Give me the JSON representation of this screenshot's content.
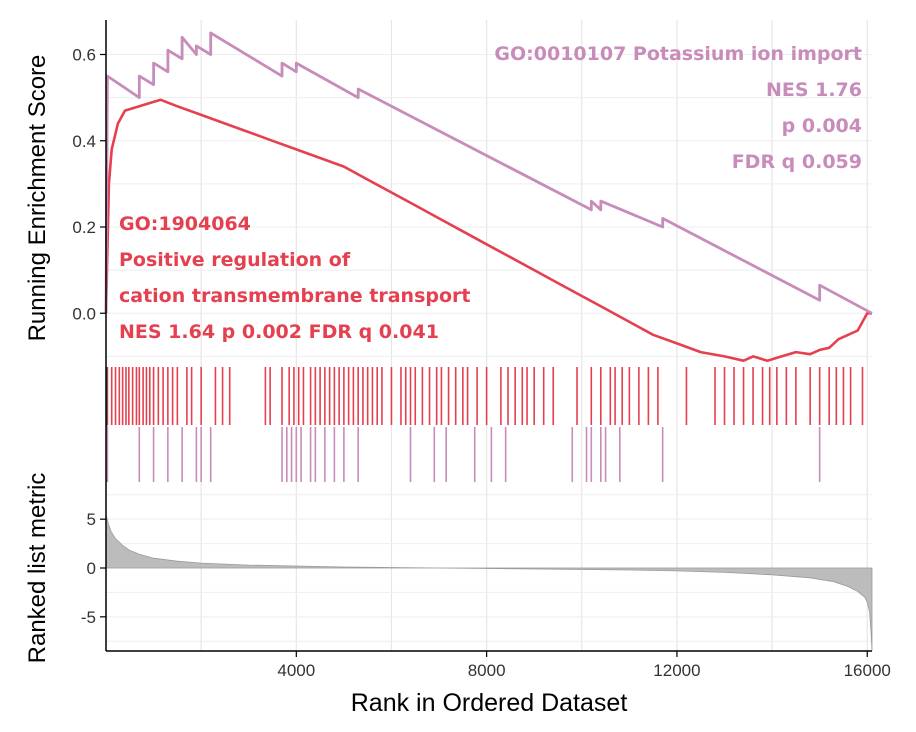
{
  "chart_data": {
    "type": "line",
    "xlabel": "Rank in Ordered Dataset",
    "xlim": [
      0,
      16100
    ],
    "x_ticks": [
      4000,
      8000,
      12000,
      16000
    ],
    "x_tick_labels": [
      "4000",
      "8000",
      "12000",
      "16000"
    ],
    "grid": true,
    "panels": {
      "enrichment": {
        "ylabel": "Running Enrichment Score",
        "ylim": [
          -0.12,
          0.68
        ],
        "y_ticks": [
          0.0,
          0.2,
          0.4,
          0.6
        ],
        "y_tick_labels": [
          "0.0",
          "0.2",
          "0.4",
          "0.6"
        ]
      },
      "metric": {
        "ylabel": "Ranked list metric",
        "ylim": [
          -8.5,
          8.5
        ],
        "y_ticks": [
          5,
          0,
          -5
        ],
        "y_tick_labels": [
          "5",
          "0",
          "-5"
        ]
      }
    },
    "series": [
      {
        "id": "go1904064",
        "color": "#e5404f",
        "annotation": [
          "GO:1904064",
          "Positive regulation of",
          "cation transmembrane transport",
          "NES 1.64 p 0.002 FDR q 0.041"
        ],
        "x": [
          0,
          60,
          120,
          250,
          400,
          700,
          1000,
          1150,
          1500,
          2000,
          2500,
          3000,
          3500,
          4000,
          4500,
          5000,
          5500,
          6000,
          6500,
          7000,
          7500,
          8000,
          8500,
          9000,
          9500,
          10000,
          10500,
          11000,
          11500,
          12000,
          12500,
          13000,
          13400,
          13600,
          13900,
          14200,
          14500,
          14800,
          15000,
          15200,
          15400,
          15600,
          15800,
          15900,
          16000,
          16100
        ],
        "y": [
          0.0,
          0.3,
          0.38,
          0.44,
          0.47,
          0.48,
          0.49,
          0.495,
          0.48,
          0.46,
          0.44,
          0.42,
          0.4,
          0.38,
          0.36,
          0.34,
          0.31,
          0.28,
          0.25,
          0.22,
          0.19,
          0.16,
          0.13,
          0.1,
          0.07,
          0.04,
          0.01,
          -0.02,
          -0.05,
          -0.07,
          -0.09,
          -0.1,
          -0.11,
          -0.1,
          -0.11,
          -0.1,
          -0.09,
          -0.095,
          -0.085,
          -0.08,
          -0.06,
          -0.05,
          -0.04,
          -0.02,
          0.0,
          0.0
        ],
        "hits": [
          30,
          120,
          200,
          280,
          350,
          420,
          480,
          560,
          640,
          700,
          780,
          850,
          920,
          1000,
          1100,
          1200,
          1300,
          1400,
          1500,
          1700,
          1800,
          2000,
          2300,
          2450,
          2600,
          3350,
          3450,
          3700,
          3850,
          3950,
          4050,
          4150,
          4300,
          4400,
          4500,
          4600,
          4700,
          4800,
          4900,
          5000,
          5100,
          5200,
          5300,
          5400,
          5500,
          5600,
          5700,
          5800,
          6000,
          6200,
          6300,
          6400,
          6500,
          6650,
          6800,
          6950,
          7050,
          7200,
          7350,
          7500,
          7600,
          7800,
          8000,
          8300,
          8450,
          8600,
          8750,
          8850,
          9000,
          9200,
          9400,
          9900,
          10200,
          10400,
          10600,
          10700,
          10850,
          11000,
          11200,
          11400,
          11600,
          12200,
          12800,
          13000,
          13200,
          13400,
          13600,
          13800,
          13950,
          14100,
          14300,
          14500,
          14800,
          15000,
          15200,
          15350,
          15500,
          15650,
          15900
        ]
      },
      {
        "id": "go0010107",
        "color": "#c88cba",
        "annotation": [
          "GO:0010107 Potassium ion import",
          "NES 1.76",
          "p 0.004",
          "FDR q 0.059"
        ],
        "x": [
          0,
          30,
          700,
          700,
          1000,
          1000,
          1300,
          1300,
          1600,
          1600,
          1900,
          1900,
          2200,
          2200,
          3700,
          3700,
          4000,
          4000,
          5300,
          5300,
          10200,
          10200,
          10400,
          10400,
          11700,
          11700,
          15000,
          15000,
          16100
        ],
        "y": [
          0.0,
          0.55,
          0.5,
          0.55,
          0.53,
          0.58,
          0.56,
          0.61,
          0.59,
          0.64,
          0.6,
          0.62,
          0.6,
          0.65,
          0.55,
          0.58,
          0.56,
          0.58,
          0.5,
          0.52,
          0.24,
          0.26,
          0.24,
          0.26,
          0.2,
          0.22,
          0.03,
          0.065,
          0.0
        ],
        "hits": [
          30,
          700,
          1000,
          1300,
          1600,
          1900,
          2000,
          2200,
          3700,
          3800,
          3900,
          4000,
          4100,
          4300,
          4400,
          4600,
          4800,
          5000,
          5300,
          6400,
          6900,
          7150,
          7750,
          8100,
          8400,
          9800,
          10100,
          10200,
          10400,
          10500,
          10800,
          11700,
          15000
        ]
      }
    ],
    "metric_curve": {
      "color": "#bcbcbc",
      "x": [
        0,
        50,
        100,
        200,
        350,
        500,
        700,
        1000,
        1500,
        2000,
        3000,
        4000,
        5000,
        6000,
        7000,
        8000,
        9000,
        10000,
        11000,
        12000,
        13000,
        14000,
        14800,
        15300,
        15600,
        15800,
        15950,
        16000,
        16050,
        16080,
        16100
      ],
      "y": [
        5.5,
        4.5,
        3.8,
        3.0,
        2.3,
        1.8,
        1.4,
        1.0,
        0.7,
        0.5,
        0.3,
        0.2,
        0.1,
        0.05,
        0.0,
        -0.05,
        -0.1,
        -0.15,
        -0.2,
        -0.3,
        -0.45,
        -0.7,
        -1.0,
        -1.4,
        -1.9,
        -2.4,
        -3.0,
        -3.5,
        -4.5,
        -6.5,
        -8.5
      ]
    }
  }
}
